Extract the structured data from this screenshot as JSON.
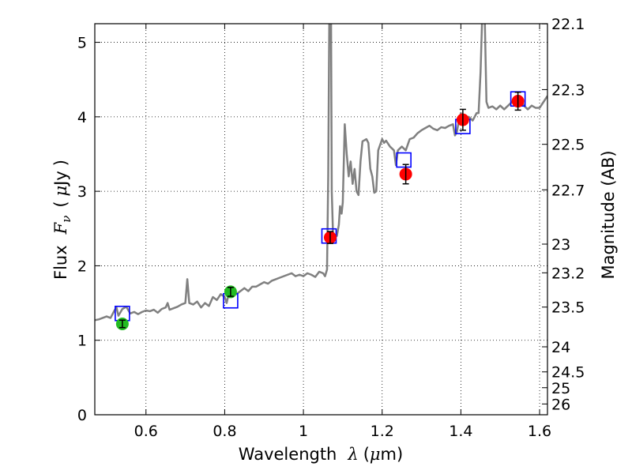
{
  "chart_data": {
    "type": "scatter",
    "xlabel_parts": {
      "prefix": "Wavelength",
      "symbol": "λ",
      "unit_open": "(",
      "unit_mu": "μ",
      "unit_rest": "m)"
    },
    "ylabel_parts": {
      "prefix": "Flux",
      "symbol": "F",
      "subscript": "ν",
      "unit_open": "(",
      "unit_mu": "μ",
      "unit_rest": "Jy",
      "unit_close": ")"
    },
    "y2label": "Magnitude (AB)",
    "xlim": [
      0.47,
      1.62
    ],
    "ylim": [
      0,
      5.25
    ],
    "grid": true,
    "x_ticks": [
      0.6,
      0.8,
      1.0,
      1.2,
      1.4,
      1.6
    ],
    "x_tick_labels": [
      "0.6",
      "0.8",
      "1",
      "1.2",
      "1.4",
      "1.6"
    ],
    "y_ticks": [
      0,
      1,
      2,
      3,
      4,
      5
    ],
    "y_tick_labels": [
      "0",
      "1",
      "2",
      "3",
      "4",
      "5"
    ],
    "y2_tick_labels": [
      "22.1",
      "22.3",
      "22.5",
      "22.7",
      "23",
      "23.2",
      "23.5",
      "24",
      "24.5",
      "25",
      "26"
    ],
    "y2_tick_mags": [
      22.1,
      22.3,
      22.5,
      22.7,
      23.0,
      23.2,
      23.5,
      24.0,
      24.5,
      25.0,
      26.0
    ],
    "colors": {
      "model": "#808080",
      "model_boxes": "#0000ff",
      "obs_green": "#22bb22",
      "obs_red": "#ff0000",
      "errorbar": "#000000"
    },
    "series": [
      {
        "name": "model spectrum",
        "kind": "line",
        "points": [
          [
            0.47,
            1.27
          ],
          [
            0.48,
            1.28
          ],
          [
            0.49,
            1.3
          ],
          [
            0.5,
            1.32
          ],
          [
            0.51,
            1.3
          ],
          [
            0.52,
            1.4
          ],
          [
            0.525,
            1.44
          ],
          [
            0.53,
            1.33
          ],
          [
            0.54,
            1.42
          ],
          [
            0.55,
            1.45
          ],
          [
            0.56,
            1.36
          ],
          [
            0.57,
            1.38
          ],
          [
            0.58,
            1.35
          ],
          [
            0.59,
            1.38
          ],
          [
            0.6,
            1.4
          ],
          [
            0.61,
            1.39
          ],
          [
            0.62,
            1.41
          ],
          [
            0.63,
            1.37
          ],
          [
            0.64,
            1.42
          ],
          [
            0.65,
            1.44
          ],
          [
            0.655,
            1.5
          ],
          [
            0.66,
            1.41
          ],
          [
            0.67,
            1.43
          ],
          [
            0.68,
            1.45
          ],
          [
            0.69,
            1.48
          ],
          [
            0.7,
            1.5
          ],
          [
            0.705,
            1.82
          ],
          [
            0.71,
            1.5
          ],
          [
            0.72,
            1.48
          ],
          [
            0.73,
            1.52
          ],
          [
            0.74,
            1.44
          ],
          [
            0.75,
            1.5
          ],
          [
            0.76,
            1.46
          ],
          [
            0.77,
            1.58
          ],
          [
            0.78,
            1.54
          ],
          [
            0.79,
            1.62
          ],
          [
            0.8,
            1.58
          ],
          [
            0.805,
            1.5
          ],
          [
            0.81,
            1.62
          ],
          [
            0.82,
            1.64
          ],
          [
            0.83,
            1.62
          ],
          [
            0.84,
            1.66
          ],
          [
            0.85,
            1.7
          ],
          [
            0.86,
            1.66
          ],
          [
            0.87,
            1.72
          ],
          [
            0.88,
            1.72
          ],
          [
            0.89,
            1.75
          ],
          [
            0.9,
            1.78
          ],
          [
            0.91,
            1.76
          ],
          [
            0.92,
            1.8
          ],
          [
            0.93,
            1.82
          ],
          [
            0.94,
            1.84
          ],
          [
            0.95,
            1.86
          ],
          [
            0.96,
            1.88
          ],
          [
            0.97,
            1.9
          ],
          [
            0.98,
            1.86
          ],
          [
            0.99,
            1.88
          ],
          [
            1.0,
            1.86
          ],
          [
            1.01,
            1.9
          ],
          [
            1.02,
            1.88
          ],
          [
            1.03,
            1.85
          ],
          [
            1.04,
            1.92
          ],
          [
            1.05,
            1.9
          ],
          [
            1.055,
            1.86
          ],
          [
            1.06,
            1.95
          ],
          [
            1.063,
            3.2
          ],
          [
            1.066,
            5.5
          ],
          [
            1.07,
            5.5
          ],
          [
            1.072,
            3.0
          ],
          [
            1.075,
            2.45
          ],
          [
            1.08,
            2.4
          ],
          [
            1.085,
            2.4
          ],
          [
            1.09,
            2.55
          ],
          [
            1.093,
            2.8
          ],
          [
            1.097,
            2.7
          ],
          [
            1.1,
            2.85
          ],
          [
            1.105,
            3.9
          ],
          [
            1.11,
            3.5
          ],
          [
            1.115,
            3.2
          ],
          [
            1.12,
            3.4
          ],
          [
            1.125,
            3.1
          ],
          [
            1.13,
            3.3
          ],
          [
            1.135,
            3.0
          ],
          [
            1.14,
            2.95
          ],
          [
            1.145,
            3.4
          ],
          [
            1.15,
            3.67
          ],
          [
            1.16,
            3.7
          ],
          [
            1.165,
            3.65
          ],
          [
            1.17,
            3.3
          ],
          [
            1.175,
            3.2
          ],
          [
            1.18,
            2.98
          ],
          [
            1.185,
            3.0
          ],
          [
            1.19,
            3.55
          ],
          [
            1.2,
            3.7
          ],
          [
            1.205,
            3.65
          ],
          [
            1.21,
            3.68
          ],
          [
            1.22,
            3.6
          ],
          [
            1.23,
            3.55
          ],
          [
            1.235,
            3.35
          ],
          [
            1.24,
            3.55
          ],
          [
            1.25,
            3.6
          ],
          [
            1.26,
            3.55
          ],
          [
            1.27,
            3.7
          ],
          [
            1.28,
            3.72
          ],
          [
            1.29,
            3.78
          ],
          [
            1.3,
            3.82
          ],
          [
            1.31,
            3.85
          ],
          [
            1.32,
            3.88
          ],
          [
            1.33,
            3.84
          ],
          [
            1.34,
            3.82
          ],
          [
            1.35,
            3.86
          ],
          [
            1.36,
            3.85
          ],
          [
            1.37,
            3.88
          ],
          [
            1.38,
            3.9
          ],
          [
            1.385,
            3.75
          ],
          [
            1.39,
            3.8
          ],
          [
            1.395,
            3.95
          ],
          [
            1.4,
            4.05
          ],
          [
            1.41,
            3.95
          ],
          [
            1.42,
            4.0
          ],
          [
            1.43,
            3.95
          ],
          [
            1.44,
            4.05
          ],
          [
            1.445,
            4.05
          ],
          [
            1.45,
            4.6
          ],
          [
            1.455,
            5.5
          ],
          [
            1.46,
            5.5
          ],
          [
            1.465,
            4.2
          ],
          [
            1.47,
            4.12
          ],
          [
            1.48,
            4.14
          ],
          [
            1.49,
            4.1
          ],
          [
            1.5,
            4.15
          ],
          [
            1.51,
            4.1
          ],
          [
            1.52,
            4.15
          ],
          [
            1.53,
            4.2
          ],
          [
            1.54,
            4.22
          ],
          [
            1.55,
            4.28
          ],
          [
            1.56,
            4.15
          ],
          [
            1.57,
            4.1
          ],
          [
            1.58,
            4.15
          ],
          [
            1.59,
            4.12
          ],
          [
            1.6,
            4.12
          ],
          [
            1.61,
            4.2
          ],
          [
            1.62,
            4.28
          ]
        ]
      },
      {
        "name": "model band fluxes",
        "kind": "square",
        "points": [
          [
            0.54,
            1.36
          ],
          [
            0.815,
            1.53
          ],
          [
            1.065,
            2.4
          ],
          [
            1.255,
            3.42
          ],
          [
            1.405,
            3.87
          ],
          [
            1.545,
            4.24
          ]
        ]
      },
      {
        "name": "observed (green)",
        "kind": "circle",
        "points": [
          [
            0.54,
            1.22,
            0.05
          ],
          [
            0.815,
            1.65,
            0.06
          ]
        ]
      },
      {
        "name": "observed (red)",
        "kind": "circle",
        "points": [
          [
            1.068,
            2.38,
            0.08
          ],
          [
            1.26,
            3.23,
            0.13
          ],
          [
            1.405,
            3.96,
            0.14
          ],
          [
            1.545,
            4.21,
            0.12
          ]
        ]
      }
    ]
  }
}
